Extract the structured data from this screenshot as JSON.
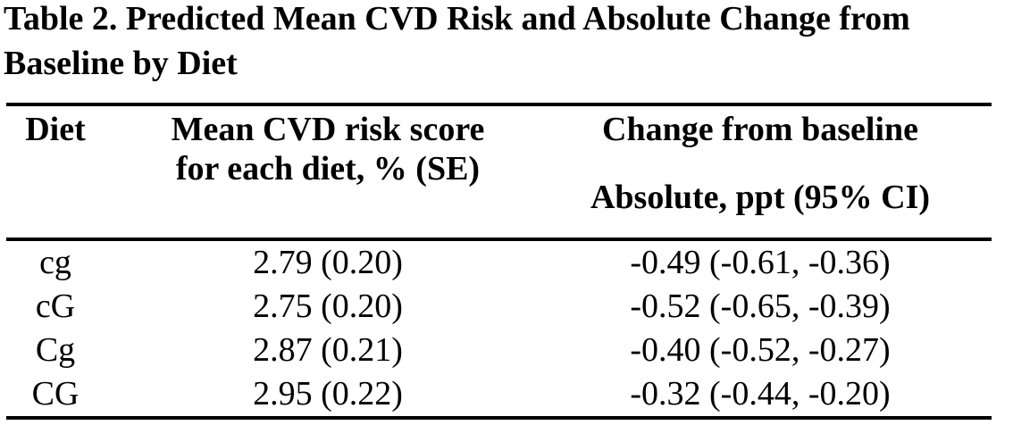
{
  "title": {
    "line1": "Table 2. Predicted Mean CVD Risk and Absolute Change from",
    "line2": "Baseline by Diet"
  },
  "table": {
    "headers": {
      "diet": "Diet",
      "risk_line1": "Mean CVD risk score",
      "risk_line2": "for each diet, % (SE)",
      "change_group": "Change from baseline",
      "change_sub": "Absolute, ppt (95% CI)"
    },
    "rows": [
      {
        "diet": "cg",
        "risk": "2.79 (0.20)",
        "change": "-0.49 (-0.61, -0.36)"
      },
      {
        "diet": "cG",
        "risk": "2.75 (0.20)",
        "change": "-0.52 (-0.65, -0.39)"
      },
      {
        "diet": "Cg",
        "risk": "2.87 (0.21)",
        "change": "-0.40 (-0.52, -0.27)"
      },
      {
        "diet": "CG",
        "risk": "2.95 (0.22)",
        "change": "-0.32 (-0.44, -0.20)"
      }
    ]
  }
}
